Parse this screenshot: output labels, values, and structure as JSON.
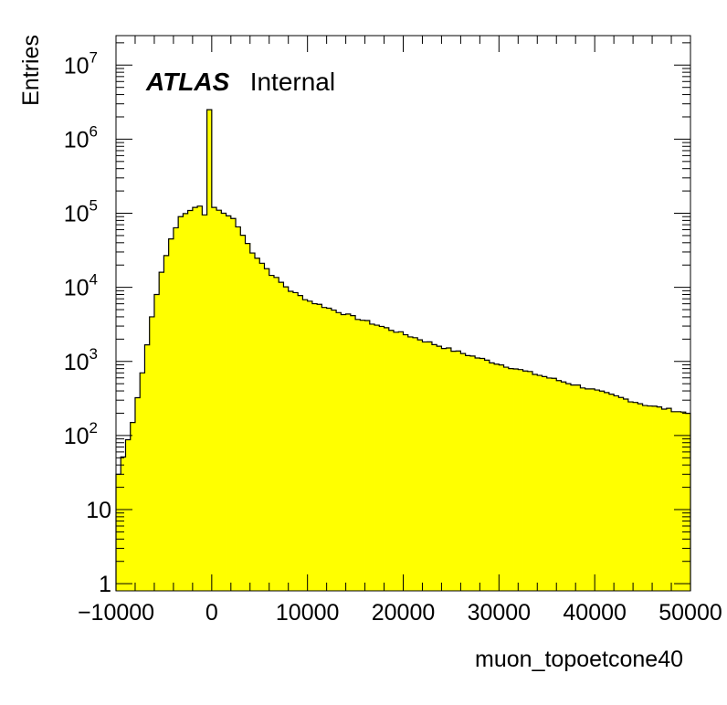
{
  "chart_data": {
    "type": "bar",
    "title": "",
    "xlabel": "muon_topoetcone40",
    "ylabel": "Entries",
    "xlim": [
      -10000,
      50000
    ],
    "ylim": [
      0.8,
      25000000
    ],
    "yscale": "log",
    "bin_width": 500,
    "fill_color": "#ffff00",
    "line_color": "#000000",
    "annotation": {
      "bold": "ATLAS",
      "text": "Internal"
    },
    "x_ticks": [
      -10000,
      0,
      10000,
      20000,
      30000,
      40000,
      50000
    ],
    "x_tick_labels": [
      "−10000",
      "0",
      "10000",
      "20000",
      "30000",
      "40000",
      "50000"
    ],
    "y_ticks": [
      {
        "value": 1,
        "base": "1",
        "exp": ""
      },
      {
        "value": 10,
        "base": "10",
        "exp": ""
      },
      {
        "value": 100,
        "base": "10",
        "exp": "2"
      },
      {
        "value": 1000,
        "base": "10",
        "exp": "3"
      },
      {
        "value": 10000,
        "base": "10",
        "exp": "4"
      },
      {
        "value": 100000,
        "base": "10",
        "exp": "5"
      },
      {
        "value": 1000000,
        "base": "10",
        "exp": "6"
      },
      {
        "value": 10000000,
        "base": "10",
        "exp": "7"
      }
    ],
    "key_points": [
      [
        -10000,
        0.8
      ],
      [
        -9750,
        30
      ],
      [
        -8250,
        150
      ],
      [
        -7250,
        700
      ],
      [
        -6250,
        4000
      ],
      [
        -5250,
        16000
      ],
      [
        -4250,
        45000
      ],
      [
        -3250,
        90000
      ],
      [
        -1750,
        120000
      ],
      [
        -1250,
        125000
      ],
      [
        -750,
        95000
      ],
      [
        -250,
        2500000
      ],
      [
        250,
        120000
      ],
      [
        750,
        110000
      ],
      [
        1250,
        100000
      ],
      [
        2250,
        85000
      ],
      [
        4250,
        30000
      ],
      [
        6250,
        15000
      ],
      [
        8250,
        9000
      ],
      [
        10250,
        6500
      ],
      [
        12250,
        5200
      ],
      [
        15250,
        3800
      ],
      [
        20250,
        2300
      ],
      [
        25250,
        1400
      ],
      [
        30250,
        900
      ],
      [
        35250,
        600
      ],
      [
        40250,
        400
      ],
      [
        45250,
        260
      ],
      [
        49750,
        200
      ]
    ],
    "spike_bins": [
      {
        "x": -250,
        "y": 2500000
      }
    ]
  }
}
